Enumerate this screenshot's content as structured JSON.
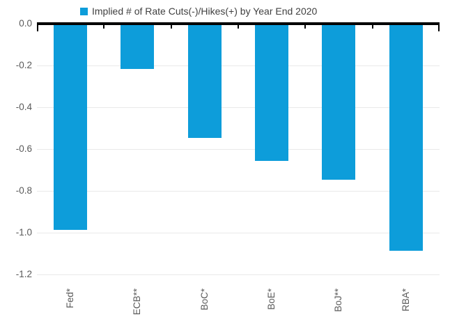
{
  "chart_data": {
    "type": "bar",
    "legend": "Implied # of Rate Cuts(-)/Hikes(+) by Year End 2020",
    "categories": [
      "Fed*",
      "ECB**",
      "BoC*",
      "BoE*",
      "BoJ**",
      "RBA*"
    ],
    "values": [
      -0.98,
      -0.21,
      -0.54,
      -0.65,
      -0.74,
      -1.08
    ],
    "ylim": [
      -1.2533,
      0
    ],
    "yticks": [
      0.0,
      -0.2,
      -0.4,
      -0.6,
      -0.8,
      -1.0,
      -1.2
    ],
    "ytick_labels": [
      "0.0",
      "-0.2",
      "-0.4",
      "-0.6",
      "-0.8",
      "-1.0",
      "-1.2"
    ],
    "xlabel": "",
    "ylabel": "",
    "grid": true,
    "legend_position": "top",
    "colors": {
      "bar": "#0d9dda",
      "axis": "#000000",
      "grid": "#e9e9e9",
      "tick_labels": "#595959",
      "legend_text": "#3f3f3f"
    }
  }
}
